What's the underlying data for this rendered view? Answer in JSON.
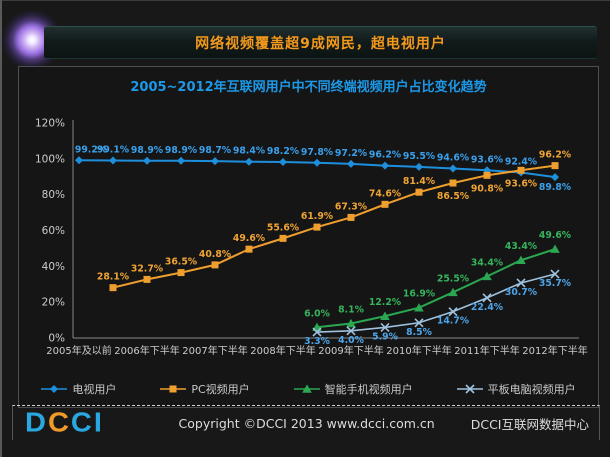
{
  "header": {
    "title": "网络视频覆盖超9成网民，超电视用户"
  },
  "chart": {
    "title": "2005~2012年互联网用户中不同终端视频用户占比变化趋势"
  },
  "chart_data": {
    "type": "line",
    "title": "2005~2012年互联网用户中不同终端视频用户占比变化趋势",
    "ylim": [
      0,
      120
    ],
    "y_tick_labels": [
      "0%",
      "20%",
      "40%",
      "60%",
      "80%",
      "100%",
      "120%"
    ],
    "y_tick_values": [
      0,
      20,
      40,
      60,
      80,
      100,
      120
    ],
    "x_slots": 15,
    "x_tick_labels": [
      "2005年及以前",
      "2006年下半年",
      "2007年下半年",
      "2008年下半年",
      "2009年下半年",
      "2010年下半年",
      "2011年下半年",
      "2012年下半年"
    ],
    "x_tick_slot_indices": [
      0,
      2,
      4,
      6,
      8,
      10,
      12,
      14
    ],
    "grid": false,
    "legend_position": "bottom",
    "series": [
      {
        "id": "tv",
        "name": "电视用户",
        "marker": "diamond",
        "color": "#1E8FDD",
        "label_color": "#3AA0EC",
        "start_slot": 0,
        "values": [
          99.2,
          99.1,
          98.9,
          98.9,
          98.7,
          98.4,
          98.2,
          97.8,
          97.2,
          96.2,
          95.5,
          94.6,
          93.6,
          92.4,
          89.8
        ],
        "labels_below_slots": [
          14
        ]
      },
      {
        "id": "pc",
        "name": "PC视频用户",
        "marker": "square",
        "color": "#EF9F2E",
        "label_color": "#F0A435",
        "start_slot": 1,
        "values": [
          28.1,
          32.7,
          36.5,
          40.8,
          49.6,
          55.6,
          61.9,
          67.3,
          74.6,
          81.4,
          86.5,
          90.8,
          93.6,
          96.2
        ],
        "labels_below_slots": [
          11,
          12,
          13
        ]
      },
      {
        "id": "smartphone",
        "name": "智能手机视频用户",
        "marker": "triangle",
        "color": "#2AA750",
        "label_color": "#36B35C",
        "start_slot": 7,
        "values": [
          6.0,
          8.1,
          12.2,
          16.9,
          25.5,
          34.4,
          43.4,
          49.6
        ],
        "labels_below_slots": []
      },
      {
        "id": "tablet",
        "name": "平板电脑视频用户",
        "marker": "x",
        "color": "#9FC2DE",
        "label_color": "#4EA5E8",
        "start_slot": 7,
        "values": [
          3.3,
          4.0,
          5.9,
          8.5,
          14.7,
          22.4,
          30.7,
          35.7
        ],
        "labels_below_slots": [
          7,
          8,
          9,
          10,
          11,
          12,
          13,
          14
        ]
      }
    ]
  },
  "footer": {
    "copyright": "Copyright ©DCCI 2013 www.dcci.com.cn",
    "org": "DCCI互联网数据中心",
    "logo_letters": [
      {
        "char": "D",
        "color": "#29A8E0"
      },
      {
        "char": "C",
        "color": "#F09A28"
      },
      {
        "char": "C",
        "color": "#29A8E0"
      },
      {
        "char": "I",
        "color": "#29A8E0"
      }
    ]
  }
}
